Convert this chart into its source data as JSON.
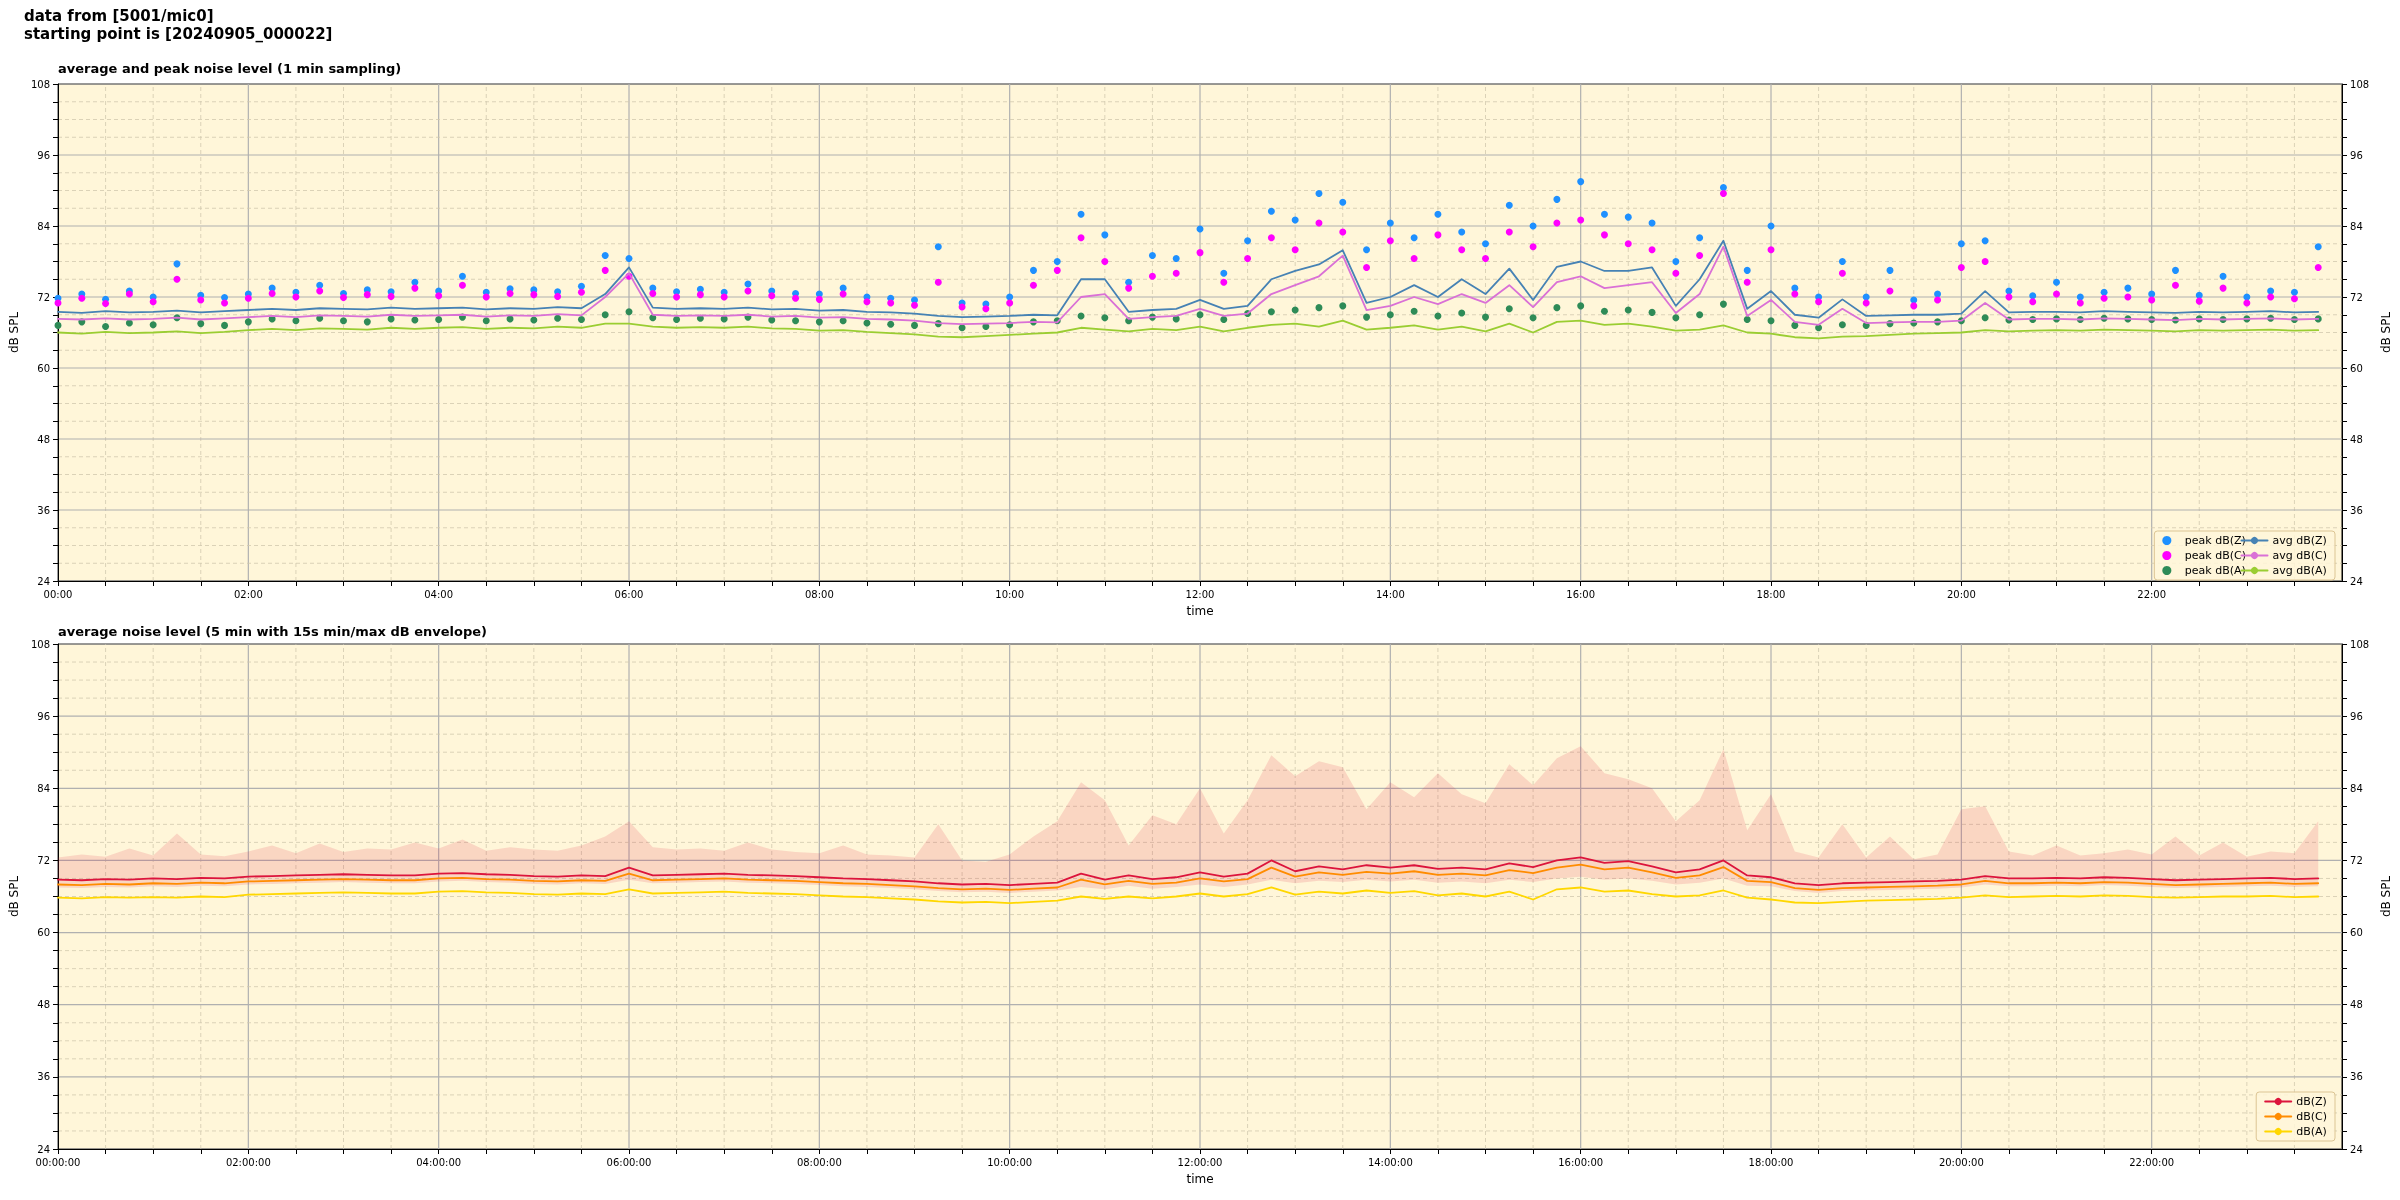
{
  "chart_data": [
    {
      "type": "line",
      "annotations": [
        "data from [5001/mic0]",
        "starting point is [20240905_000022]"
      ],
      "title": "average and peak noise level (1 min sampling)",
      "xlabel": "time",
      "ylabel": "dB SPL",
      "y2label": "dB SPL",
      "x": [
        0,
        0.25,
        0.5,
        0.75,
        1,
        1.25,
        1.5,
        1.75,
        2,
        2.25,
        2.5,
        2.75,
        3,
        3.25,
        3.5,
        3.75,
        4,
        4.25,
        4.5,
        4.75,
        5,
        5.25,
        5.5,
        5.75,
        6,
        6.25,
        6.5,
        6.75,
        7,
        7.25,
        7.5,
        7.75,
        8,
        8.25,
        8.5,
        8.75,
        9,
        9.25,
        9.5,
        9.75,
        10,
        10.25,
        10.5,
        10.75,
        11,
        11.25,
        11.5,
        11.75,
        12,
        12.25,
        12.5,
        12.75,
        13,
        13.25,
        13.5,
        13.75,
        14,
        14.25,
        14.5,
        14.75,
        15,
        15.25,
        15.5,
        15.75,
        16,
        16.25,
        16.5,
        16.75,
        17,
        17.25,
        17.5,
        17.75,
        18,
        18.25,
        18.5,
        18.75,
        19,
        19.25,
        19.5,
        19.75,
        20,
        20.25,
        20.5,
        20.75,
        21,
        21.25,
        21.5,
        21.75,
        22,
        22.25,
        22.5,
        22.75,
        23,
        23.25,
        23.5,
        23.75
      ],
      "xlim": [
        0,
        24
      ],
      "xticks": [
        {
          "value": 0,
          "label": "00:00"
        },
        {
          "value": 0.5,
          "label": null
        },
        {
          "value": 1,
          "label": null
        },
        {
          "value": 1.5,
          "label": null
        },
        {
          "value": 2,
          "label": "02:00"
        },
        {
          "value": 2.5,
          "label": null
        },
        {
          "value": 3,
          "label": null
        },
        {
          "value": 3.5,
          "label": null
        },
        {
          "value": 4,
          "label": "04:00"
        },
        {
          "value": 4.5,
          "label": null
        },
        {
          "value": 5,
          "label": null
        },
        {
          "value": 5.5,
          "label": null
        },
        {
          "value": 6,
          "label": "06:00"
        },
        {
          "value": 6.5,
          "label": null
        },
        {
          "value": 7,
          "label": null
        },
        {
          "value": 7.5,
          "label": null
        },
        {
          "value": 8,
          "label": "08:00"
        },
        {
          "value": 8.5,
          "label": null
        },
        {
          "value": 9,
          "label": null
        },
        {
          "value": 9.5,
          "label": null
        },
        {
          "value": 10,
          "label": "10:00"
        },
        {
          "value": 10.5,
          "label": null
        },
        {
          "value": 11,
          "label": null
        },
        {
          "value": 11.5,
          "label": null
        },
        {
          "value": 12,
          "label": "12:00"
        },
        {
          "value": 12.5,
          "label": null
        },
        {
          "value": 13,
          "label": null
        },
        {
          "value": 13.5,
          "label": null
        },
        {
          "value": 14,
          "label": "14:00"
        },
        {
          "value": 14.5,
          "label": null
        },
        {
          "value": 15,
          "label": null
        },
        {
          "value": 15.5,
          "label": null
        },
        {
          "value": 16,
          "label": "16:00"
        },
        {
          "value": 16.5,
          "label": null
        },
        {
          "value": 17,
          "label": null
        },
        {
          "value": 17.5,
          "label": null
        },
        {
          "value": 18,
          "label": "18:00"
        },
        {
          "value": 18.5,
          "label": null
        },
        {
          "value": 19,
          "label": null
        },
        {
          "value": 19.5,
          "label": null
        },
        {
          "value": 20,
          "label": "20:00"
        },
        {
          "value": 20.5,
          "label": null
        },
        {
          "value": 21,
          "label": null
        },
        {
          "value": 21.5,
          "label": null
        },
        {
          "value": 22,
          "label": "22:00"
        },
        {
          "value": 22.5,
          "label": null
        },
        {
          "value": 23,
          "label": null
        },
        {
          "value": 23.5,
          "label": null
        }
      ],
      "ylim": [
        24,
        108
      ],
      "yticks": [
        24,
        {
          "value": 27,
          "label": null
        },
        {
          "value": 30,
          "label": null
        },
        {
          "value": 33,
          "label": null
        },
        36,
        {
          "value": 39,
          "label": null
        },
        {
          "value": 42,
          "label": null
        },
        {
          "value": 45,
          "label": null
        },
        48,
        {
          "value": 51,
          "label": null
        },
        {
          "value": 54,
          "label": null
        },
        {
          "value": 57,
          "label": null
        },
        60,
        {
          "value": 63,
          "label": null
        },
        {
          "value": 66,
          "label": null
        },
        {
          "value": 69,
          "label": null
        },
        72,
        {
          "value": 75,
          "label": null
        },
        {
          "value": 78,
          "label": null
        },
        {
          "value": 81,
          "label": null
        },
        84,
        {
          "value": 87,
          "label": null
        },
        {
          "value": 90,
          "label": null
        },
        {
          "value": 93,
          "label": null
        },
        96,
        {
          "value": 99,
          "label": null
        },
        {
          "value": 102,
          "label": null
        },
        {
          "value": 105,
          "label": null
        },
        108
      ],
      "y2lim": [
        24,
        108
      ],
      "y2ticks": [
        24,
        {
          "value": 27,
          "label": null
        },
        {
          "value": 30,
          "label": null
        },
        {
          "value": 33,
          "label": null
        },
        36,
        {
          "value": 39,
          "label": null
        },
        {
          "value": 42,
          "label": null
        },
        {
          "value": 45,
          "label": null
        },
        48,
        {
          "value": 51,
          "label": null
        },
        {
          "value": 54,
          "label": null
        },
        {
          "value": 57,
          "label": null
        },
        60,
        {
          "value": 63,
          "label": null
        },
        {
          "value": 66,
          "label": null
        },
        {
          "value": 69,
          "label": null
        },
        72,
        {
          "value": 75,
          "label": null
        },
        {
          "value": 78,
          "label": null
        },
        {
          "value": 81,
          "label": null
        },
        84,
        {
          "value": 87,
          "label": null
        },
        {
          "value": 90,
          "label": null
        },
        {
          "value": 93,
          "label": null
        },
        96,
        {
          "value": 99,
          "label": null
        },
        {
          "value": 102,
          "label": null
        },
        {
          "value": 105,
          "label": null
        },
        108
      ],
      "grid": true,
      "legend": "bottom right",
      "series": [
        {
          "name": "peak dB(Z)",
          "type": "scatter",
          "marker": "circle",
          "color": "#1e90ff",
          "values": [
            71.8,
            72.5,
            71.6,
            73.0,
            72.0,
            77.6,
            72.3,
            71.9,
            72.5,
            73.5,
            72.8,
            74.0,
            72.6,
            73.2,
            72.9,
            74.5,
            73.0,
            75.5,
            72.8,
            73.4,
            73.2,
            72.9,
            73.8,
            79.0,
            78.5,
            73.5,
            72.9,
            73.3,
            72.8,
            74.2,
            73.0,
            72.6,
            72.5,
            73.5,
            72.0,
            71.8,
            71.5,
            80.5,
            71.0,
            70.8,
            72.0,
            76.5,
            78.0,
            86.0,
            82.5,
            74.5,
            79.0,
            78.5,
            83.5,
            76.0,
            81.5,
            86.5,
            85.0,
            89.5,
            88.0,
            80.0,
            84.5,
            82.0,
            86.0,
            83.0,
            81.0,
            87.5,
            84.0,
            88.5,
            91.5,
            86.0,
            85.5,
            84.5,
            78.0,
            82.0,
            90.5,
            76.5,
            84.0,
            73.5,
            72.0,
            78.0,
            72.0,
            76.5,
            71.5,
            72.5,
            81.0,
            81.5,
            73.0,
            72.2,
            74.5,
            72.0,
            72.8,
            73.5,
            72.5,
            76.5,
            72.3,
            75.5,
            72.0,
            73.0,
            72.8,
            80.5
          ]
        },
        {
          "name": "peak dB(C)",
          "type": "scatter",
          "marker": "circle",
          "color": "#ff00ff",
          "values": [
            71.0,
            71.8,
            70.9,
            72.5,
            71.2,
            75.0,
            71.5,
            71.0,
            71.8,
            72.6,
            72.0,
            73.0,
            71.9,
            72.4,
            72.1,
            73.5,
            72.2,
            74.0,
            72.0,
            72.6,
            72.4,
            72.1,
            72.8,
            76.5,
            75.5,
            72.6,
            72.0,
            72.4,
            72.0,
            73.0,
            72.2,
            71.8,
            71.6,
            72.5,
            71.2,
            71.0,
            70.6,
            74.5,
            70.3,
            70.0,
            71.0,
            74.0,
            76.5,
            82.0,
            78.0,
            73.5,
            75.5,
            76.0,
            79.5,
            74.5,
            78.5,
            82.0,
            80.0,
            84.5,
            83.0,
            77.0,
            81.5,
            78.5,
            82.5,
            80.0,
            78.5,
            83.0,
            80.5,
            84.5,
            85.0,
            82.5,
            81.0,
            80.0,
            76.0,
            79.0,
            89.5,
            74.5,
            80.0,
            72.5,
            71.2,
            76.0,
            71.0,
            73.0,
            70.5,
            71.5,
            77.0,
            78.0,
            72.0,
            71.2,
            72.5,
            71.0,
            71.8,
            72.0,
            71.5,
            74.0,
            71.3,
            73.5,
            71.0,
            72.0,
            71.7,
            77.0
          ]
        },
        {
          "name": "peak dB(A)",
          "type": "scatter",
          "marker": "circle",
          "color": "#2e8b57",
          "values": [
            67.2,
            67.8,
            67.0,
            67.6,
            67.3,
            68.5,
            67.5,
            67.2,
            67.8,
            68.3,
            68.0,
            68.4,
            68.0,
            67.8,
            68.3,
            68.1,
            68.2,
            68.6,
            68.0,
            68.3,
            68.1,
            68.4,
            68.2,
            69.0,
            69.5,
            68.5,
            68.2,
            68.4,
            68.3,
            68.6,
            68.1,
            68.0,
            67.8,
            68.0,
            67.6,
            67.4,
            67.2,
            67.5,
            66.8,
            67.0,
            67.3,
            67.8,
            68.0,
            68.8,
            68.5,
            68.0,
            68.6,
            68.3,
            69.0,
            68.2,
            69.2,
            69.5,
            69.8,
            70.2,
            70.5,
            68.6,
            69.0,
            69.6,
            68.8,
            69.3,
            68.6,
            70.0,
            68.5,
            70.2,
            70.5,
            69.6,
            69.8,
            69.4,
            68.5,
            69.0,
            70.8,
            68.2,
            68.0,
            67.2,
            66.8,
            67.3,
            67.2,
            67.5,
            67.6,
            67.8,
            68.0,
            68.5,
            68.1,
            68.2,
            68.3,
            68.2,
            68.4,
            68.3,
            68.2,
            68.1,
            68.3,
            68.2,
            68.3,
            68.4,
            68.2,
            68.3
          ]
        },
        {
          "name": "avg dB(Z)",
          "color": "#4682b4",
          "values": [
            69.5,
            69.3,
            69.6,
            69.4,
            69.5,
            69.7,
            69.4,
            69.6,
            69.8,
            70.0,
            69.8,
            70.1,
            70.0,
            69.9,
            70.2,
            70.0,
            70.1,
            70.2,
            69.9,
            70.1,
            70.0,
            70.3,
            70.1,
            72.5,
            77.0,
            70.2,
            70.0,
            70.1,
            70.0,
            70.2,
            69.9,
            70.0,
            69.7,
            69.8,
            69.5,
            69.4,
            69.2,
            68.8,
            68.6,
            68.7,
            68.8,
            69.0,
            68.9,
            75.0,
            75.0,
            69.5,
            69.8,
            70.0,
            71.5,
            70.0,
            70.5,
            75.0,
            76.4,
            77.5,
            79.9,
            71.0,
            72.0,
            74.0,
            72.0,
            75.0,
            72.5,
            76.8,
            71.5,
            77.1,
            78.0,
            76.4,
            76.4,
            77.0,
            70.5,
            75.0,
            81.5,
            70.0,
            73.0,
            69.0,
            68.5,
            71.6,
            68.8,
            68.9,
            69.0,
            69.0,
            69.2,
            73.0,
            69.4,
            69.5,
            69.5,
            69.4,
            69.6,
            69.5,
            69.4,
            69.3,
            69.5,
            69.4,
            69.5,
            69.6,
            69.4,
            69.5
          ]
        },
        {
          "name": "avg dB(C)",
          "color": "#da70d6",
          "values": [
            68.3,
            68.2,
            68.4,
            68.2,
            68.3,
            68.5,
            68.2,
            68.4,
            68.6,
            68.8,
            68.6,
            68.9,
            68.8,
            68.7,
            69.0,
            68.8,
            68.9,
            69.0,
            68.7,
            68.9,
            68.8,
            69.1,
            68.9,
            72.0,
            76.0,
            69.0,
            68.8,
            68.9,
            68.8,
            69.0,
            68.7,
            68.8,
            68.5,
            68.6,
            68.3,
            68.2,
            68.0,
            67.6,
            67.4,
            67.5,
            67.6,
            67.8,
            67.7,
            72.0,
            72.5,
            68.3,
            68.6,
            68.8,
            70.0,
            68.8,
            69.2,
            72.5,
            74.0,
            75.5,
            79.0,
            69.8,
            70.5,
            72.0,
            70.8,
            72.5,
            71.0,
            74.0,
            70.3,
            74.5,
            75.5,
            73.5,
            74.0,
            74.5,
            69.3,
            72.5,
            80.5,
            68.8,
            71.5,
            67.8,
            67.3,
            70.0,
            67.6,
            67.7,
            67.8,
            67.8,
            68.0,
            71.0,
            68.2,
            68.3,
            68.3,
            68.2,
            68.4,
            68.3,
            68.2,
            68.1,
            68.3,
            68.2,
            68.3,
            68.4,
            68.2,
            68.3
          ]
        },
        {
          "name": "avg dB(A)",
          "color": "#9acd32",
          "values": [
            66.0,
            65.8,
            66.1,
            65.9,
            66.0,
            66.2,
            65.9,
            66.1,
            66.4,
            66.6,
            66.4,
            66.7,
            66.6,
            66.5,
            66.8,
            66.6,
            66.8,
            66.9,
            66.6,
            66.8,
            66.7,
            67.0,
            66.8,
            67.5,
            67.5,
            67.0,
            66.8,
            66.9,
            66.8,
            67.0,
            66.7,
            66.6,
            66.3,
            66.4,
            66.1,
            65.9,
            65.7,
            65.3,
            65.2,
            65.4,
            65.6,
            65.8,
            66.0,
            66.8,
            66.5,
            66.2,
            66.6,
            66.4,
            67.0,
            66.2,
            66.8,
            67.3,
            67.5,
            67.0,
            68.0,
            66.5,
            66.8,
            67.2,
            66.5,
            67.0,
            66.2,
            67.5,
            66.0,
            67.8,
            68.0,
            67.3,
            67.5,
            67.0,
            66.3,
            66.5,
            67.2,
            66.0,
            65.8,
            65.2,
            65.0,
            65.3,
            65.4,
            65.6,
            65.8,
            65.9,
            66.0,
            66.4,
            66.2,
            66.3,
            66.4,
            66.3,
            66.5,
            66.4,
            66.3,
            66.2,
            66.4,
            66.3,
            66.4,
            66.5,
            66.3,
            66.4
          ]
        }
      ]
    },
    {
      "type": "line",
      "title": "average noise level (5 min with 15s min/max dB envelope)",
      "xlabel": "time",
      "ylabel": "dB SPL",
      "y2label": "dB SPL",
      "x": [
        0,
        0.25,
        0.5,
        0.75,
        1,
        1.25,
        1.5,
        1.75,
        2,
        2.25,
        2.5,
        2.75,
        3,
        3.25,
        3.5,
        3.75,
        4,
        4.25,
        4.5,
        4.75,
        5,
        5.25,
        5.5,
        5.75,
        6,
        6.25,
        6.5,
        6.75,
        7,
        7.25,
        7.5,
        7.75,
        8,
        8.25,
        8.5,
        8.75,
        9,
        9.25,
        9.5,
        9.75,
        10,
        10.25,
        10.5,
        10.75,
        11,
        11.25,
        11.5,
        11.75,
        12,
        12.25,
        12.5,
        12.75,
        13,
        13.25,
        13.5,
        13.75,
        14,
        14.25,
        14.5,
        14.75,
        15,
        15.25,
        15.5,
        15.75,
        16,
        16.25,
        16.5,
        16.75,
        17,
        17.25,
        17.5,
        17.75,
        18,
        18.25,
        18.5,
        18.75,
        19,
        19.25,
        19.5,
        19.75,
        20,
        20.25,
        20.5,
        20.75,
        21,
        21.25,
        21.5,
        21.75,
        22,
        22.25,
        22.5,
        22.75,
        23,
        23.25,
        23.5,
        23.75
      ],
      "xlim": [
        0,
        24
      ],
      "xticks": [
        {
          "value": 0,
          "label": "00:00:00"
        },
        {
          "value": 0.5,
          "label": null
        },
        {
          "value": 1,
          "label": null
        },
        {
          "value": 1.5,
          "label": null
        },
        {
          "value": 2,
          "label": "02:00:00"
        },
        {
          "value": 2.5,
          "label": null
        },
        {
          "value": 3,
          "label": null
        },
        {
          "value": 3.5,
          "label": null
        },
        {
          "value": 4,
          "label": "04:00:00"
        },
        {
          "value": 4.5,
          "label": null
        },
        {
          "value": 5,
          "label": null
        },
        {
          "value": 5.5,
          "label": null
        },
        {
          "value": 6,
          "label": "06:00:00"
        },
        {
          "value": 6.5,
          "label": null
        },
        {
          "value": 7,
          "label": null
        },
        {
          "value": 7.5,
          "label": null
        },
        {
          "value": 8,
          "label": "08:00:00"
        },
        {
          "value": 8.5,
          "label": null
        },
        {
          "value": 9,
          "label": null
        },
        {
          "value": 9.5,
          "label": null
        },
        {
          "value": 10,
          "label": "10:00:00"
        },
        {
          "value": 10.5,
          "label": null
        },
        {
          "value": 11,
          "label": null
        },
        {
          "value": 11.5,
          "label": null
        },
        {
          "value": 12,
          "label": "12:00:00"
        },
        {
          "value": 12.5,
          "label": null
        },
        {
          "value": 13,
          "label": null
        },
        {
          "value": 13.5,
          "label": null
        },
        {
          "value": 14,
          "label": "14:00:00"
        },
        {
          "value": 14.5,
          "label": null
        },
        {
          "value": 15,
          "label": null
        },
        {
          "value": 15.5,
          "label": null
        },
        {
          "value": 16,
          "label": "16:00:00"
        },
        {
          "value": 16.5,
          "label": null
        },
        {
          "value": 17,
          "label": null
        },
        {
          "value": 17.5,
          "label": null
        },
        {
          "value": 18,
          "label": "18:00:00"
        },
        {
          "value": 18.5,
          "label": null
        },
        {
          "value": 19,
          "label": null
        },
        {
          "value": 19.5,
          "label": null
        },
        {
          "value": 20,
          "label": "20:00:00"
        },
        {
          "value": 20.5,
          "label": null
        },
        {
          "value": 21,
          "label": null
        },
        {
          "value": 21.5,
          "label": null
        },
        {
          "value": 22,
          "label": "22:00:00"
        },
        {
          "value": 22.5,
          "label": null
        },
        {
          "value": 23,
          "label": null
        },
        {
          "value": 23.5,
          "label": null
        }
      ],
      "ylim": [
        24,
        108
      ],
      "yticks": [
        24,
        {
          "value": 27,
          "label": null
        },
        {
          "value": 30,
          "label": null
        },
        {
          "value": 33,
          "label": null
        },
        36,
        {
          "value": 39,
          "label": null
        },
        {
          "value": 42,
          "label": null
        },
        {
          "value": 45,
          "label": null
        },
        48,
        {
          "value": 51,
          "label": null
        },
        {
          "value": 54,
          "label": null
        },
        {
          "value": 57,
          "label": null
        },
        60,
        {
          "value": 63,
          "label": null
        },
        {
          "value": 66,
          "label": null
        },
        {
          "value": 69,
          "label": null
        },
        72,
        {
          "value": 75,
          "label": null
        },
        {
          "value": 78,
          "label": null
        },
        {
          "value": 81,
          "label": null
        },
        84,
        {
          "value": 87,
          "label": null
        },
        {
          "value": 90,
          "label": null
        },
        {
          "value": 93,
          "label": null
        },
        96,
        {
          "value": 99,
          "label": null
        },
        {
          "value": 102,
          "label": null
        },
        {
          "value": 105,
          "label": null
        },
        108
      ],
      "y2lim": [
        24,
        108
      ],
      "y2ticks": [
        24,
        {
          "value": 27,
          "label": null
        },
        {
          "value": 30,
          "label": null
        },
        {
          "value": 33,
          "label": null
        },
        36,
        {
          "value": 39,
          "label": null
        },
        {
          "value": 42,
          "label": null
        },
        {
          "value": 45,
          "label": null
        },
        48,
        {
          "value": 51,
          "label": null
        },
        {
          "value": 54,
          "label": null
        },
        {
          "value": 57,
          "label": null
        },
        60,
        {
          "value": 63,
          "label": null
        },
        {
          "value": 66,
          "label": null
        },
        {
          "value": 69,
          "label": null
        },
        72,
        {
          "value": 75,
          "label": null
        },
        {
          "value": 78,
          "label": null
        },
        {
          "value": 81,
          "label": null
        },
        84,
        {
          "value": 87,
          "label": null
        },
        {
          "value": 90,
          "label": null
        },
        {
          "value": 93,
          "label": null
        },
        96,
        {
          "value": 99,
          "label": null
        },
        {
          "value": 102,
          "label": null
        },
        {
          "value": 105,
          "label": null
        },
        108
      ],
      "grid": true,
      "legend": "bottom right",
      "series": [
        {
          "name": "dB(Z)",
          "color": "#dc143c",
          "values": [
            68.8,
            68.7,
            68.9,
            68.8,
            69.0,
            68.9,
            69.1,
            69.0,
            69.3,
            69.4,
            69.5,
            69.6,
            69.7,
            69.6,
            69.5,
            69.5,
            69.8,
            69.9,
            69.7,
            69.6,
            69.4,
            69.3,
            69.5,
            69.4,
            70.8,
            69.5,
            69.6,
            69.7,
            69.8,
            69.6,
            69.5,
            69.4,
            69.2,
            69.0,
            68.9,
            68.7,
            68.5,
            68.2,
            68.0,
            68.1,
            67.9,
            68.1,
            68.3,
            69.8,
            68.8,
            69.5,
            68.9,
            69.2,
            70.0,
            69.3,
            69.8,
            72.0,
            70.2,
            71.0,
            70.5,
            71.2,
            70.8,
            71.2,
            70.6,
            70.8,
            70.5,
            71.5,
            70.9,
            72.0,
            72.5,
            71.6,
            71.9,
            71.0,
            70.0,
            70.5,
            72.0,
            69.5,
            69.2,
            68.2,
            67.9,
            68.2,
            68.3,
            68.4,
            68.5,
            68.6,
            68.8,
            69.4,
            69.0,
            69.0,
            69.1,
            69.0,
            69.2,
            69.1,
            68.9,
            68.7,
            68.8,
            68.9,
            69.0,
            69.1,
            68.9,
            69.0
          ],
          "lower": [
            67.5,
            67.4,
            67.6,
            67.5,
            67.7,
            67.6,
            67.8,
            67.7,
            68.0,
            68.1,
            68.2,
            68.3,
            68.4,
            68.3,
            68.2,
            68.2,
            68.5,
            68.6,
            68.4,
            68.3,
            68.1,
            68.0,
            68.2,
            68.1,
            68.8,
            68.2,
            68.3,
            68.4,
            68.5,
            68.3,
            68.2,
            68.1,
            67.9,
            67.7,
            67.6,
            67.4,
            67.2,
            66.9,
            66.7,
            66.8,
            66.6,
            66.8,
            67.0,
            67.6,
            67.2,
            67.8,
            67.3,
            67.6,
            68.0,
            67.6,
            68.0,
            68.8,
            68.2,
            68.6,
            68.4,
            68.8,
            68.5,
            68.8,
            68.3,
            68.5,
            68.2,
            68.8,
            68.4,
            69.0,
            69.3,
            68.8,
            69.0,
            68.6,
            68.0,
            68.3,
            69.0,
            67.8,
            67.7,
            66.9,
            66.6,
            66.9,
            67.0,
            67.1,
            67.2,
            67.3,
            67.5,
            68.0,
            67.7,
            67.7,
            67.8,
            67.7,
            67.9,
            67.8,
            67.6,
            67.4,
            67.5,
            67.6,
            67.7,
            67.8,
            67.6,
            67.7
          ],
          "upper": [
            72.5,
            73.0,
            72.6,
            74.0,
            72.8,
            76.5,
            73.0,
            72.7,
            73.5,
            74.5,
            73.2,
            74.8,
            73.4,
            74.0,
            73.8,
            75.0,
            74.0,
            75.5,
            73.6,
            74.2,
            73.8,
            73.6,
            74.5,
            76.0,
            78.5,
            74.2,
            73.8,
            74.0,
            73.6,
            75.0,
            73.8,
            73.4,
            73.2,
            74.5,
            73.0,
            72.8,
            72.5,
            78.0,
            72.0,
            71.8,
            73.0,
            76.0,
            78.5,
            85.0,
            82.0,
            74.5,
            79.5,
            78.0,
            84.0,
            76.5,
            82.0,
            89.5,
            86.0,
            88.5,
            87.5,
            80.5,
            85.0,
            82.5,
            86.5,
            83.0,
            81.5,
            88.0,
            84.5,
            89.0,
            91.0,
            86.5,
            85.5,
            84.0,
            78.5,
            82.0,
            90.5,
            77.0,
            83.0,
            73.5,
            72.5,
            78.0,
            72.5,
            76.0,
            72.2,
            73.0,
            80.5,
            81.0,
            73.5,
            72.8,
            74.5,
            72.8,
            73.2,
            73.8,
            73.0,
            76.0,
            72.8,
            75.0,
            72.6,
            73.5,
            73.2,
            78.5
          ]
        },
        {
          "name": "dB(C)",
          "color": "#ff8c00",
          "values": [
            68.0,
            67.9,
            68.1,
            68.0,
            68.2,
            68.1,
            68.3,
            68.2,
            68.5,
            68.6,
            68.7,
            68.8,
            68.9,
            68.8,
            68.7,
            68.7,
            69.0,
            69.1,
            68.9,
            68.8,
            68.6,
            68.5,
            68.7,
            68.6,
            69.8,
            68.7,
            68.8,
            68.9,
            69.0,
            68.8,
            68.7,
            68.6,
            68.4,
            68.2,
            68.1,
            67.9,
            67.7,
            67.4,
            67.2,
            67.3,
            67.1,
            67.3,
            67.5,
            68.8,
            68.0,
            68.6,
            68.1,
            68.3,
            69.0,
            68.5,
            68.9,
            70.8,
            69.3,
            70.0,
            69.6,
            70.1,
            69.8,
            70.2,
            69.6,
            69.8,
            69.5,
            70.4,
            69.9,
            70.8,
            71.3,
            70.5,
            70.8,
            70.0,
            69.1,
            69.5,
            70.9,
            68.6,
            68.4,
            67.4,
            67.1,
            67.4,
            67.5,
            67.6,
            67.7,
            67.8,
            68.0,
            68.6,
            68.2,
            68.2,
            68.3,
            68.2,
            68.4,
            68.3,
            68.1,
            67.9,
            68.0,
            68.1,
            68.2,
            68.3,
            68.1,
            68.2
          ]
        },
        {
          "name": "dB(A)",
          "color": "#ffd700",
          "values": [
            65.8,
            65.7,
            65.9,
            65.8,
            65.9,
            65.8,
            66.0,
            65.9,
            66.3,
            66.4,
            66.5,
            66.6,
            66.7,
            66.6,
            66.5,
            66.5,
            66.8,
            66.9,
            66.7,
            66.6,
            66.4,
            66.3,
            66.5,
            66.4,
            67.2,
            66.5,
            66.6,
            66.7,
            66.8,
            66.6,
            66.5,
            66.4,
            66.2,
            66.0,
            65.9,
            65.7,
            65.5,
            65.2,
            65.0,
            65.1,
            64.9,
            65.1,
            65.3,
            66.0,
            65.6,
            66.0,
            65.7,
            66.0,
            66.5,
            66.0,
            66.4,
            67.5,
            66.3,
            66.8,
            66.5,
            67.0,
            66.6,
            66.9,
            66.2,
            66.5,
            66.0,
            66.8,
            65.5,
            67.2,
            67.5,
            66.8,
            67.0,
            66.4,
            66.0,
            66.2,
            67.0,
            65.8,
            65.5,
            65.0,
            64.9,
            65.1,
            65.3,
            65.4,
            65.5,
            65.6,
            65.8,
            66.2,
            65.9,
            66.0,
            66.1,
            66.0,
            66.2,
            66.1,
            65.9,
            65.8,
            65.9,
            66.0,
            66.0,
            66.1,
            65.9,
            66.0
          ]
        }
      ]
    }
  ]
}
